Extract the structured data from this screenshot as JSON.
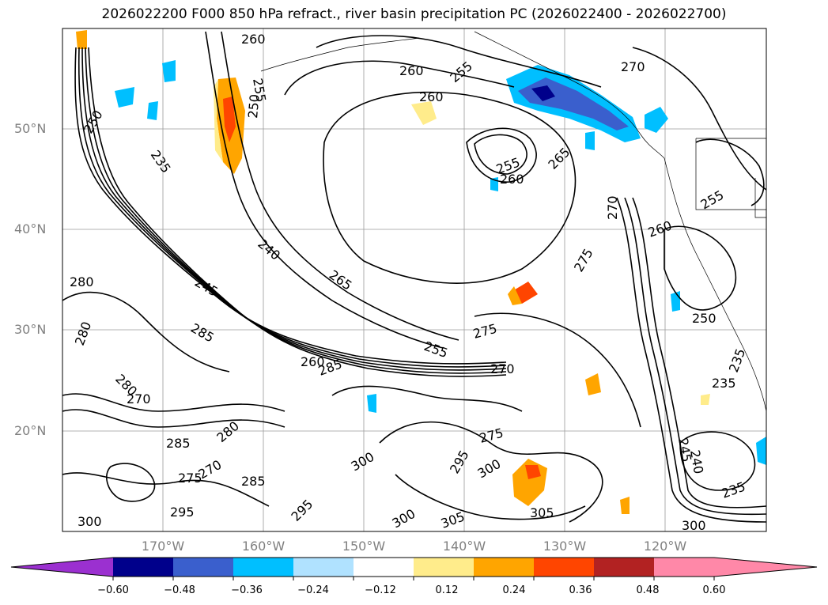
{
  "title": "2026022200 F000 850 hPa refract., river basin precipitation PC (2026022400 - 2026022700)",
  "latitude_labels": [
    "50°N",
    "40°N",
    "30°N",
    "20°N"
  ],
  "longitude_labels": [
    "170°W",
    "160°W",
    "150°W",
    "140°W",
    "130°W",
    "120°W"
  ],
  "colorbar": {
    "labels": [
      "−0.60",
      "−0.48",
      "−0.36",
      "−0.24",
      "−0.12",
      "0.12",
      "0.24",
      "0.36",
      "0.48",
      "0.60"
    ],
    "under_color": "#9b30d0",
    "colors": [
      "#00008b",
      "#3a5fcd",
      "#00bfff",
      "#b0e2ff",
      "#ffffff",
      "#ffec8b",
      "#ffa500",
      "#ff4500",
      "#b22222",
      "#ff88a8"
    ],
    "over_color": "#ff88a8"
  },
  "contour_labels": [
    {
      "text": "260"
    },
    {
      "text": "255"
    },
    {
      "text": "250"
    },
    {
      "text": "235"
    },
    {
      "text": "250"
    },
    {
      "text": "260"
    },
    {
      "text": "255"
    },
    {
      "text": "260"
    },
    {
      "text": "270"
    },
    {
      "text": "255"
    },
    {
      "text": "260"
    },
    {
      "text": "265"
    },
    {
      "text": "240"
    },
    {
      "text": "265"
    },
    {
      "text": "245"
    },
    {
      "text": "285"
    },
    {
      "text": "280"
    },
    {
      "text": "275"
    },
    {
      "text": "275"
    },
    {
      "text": "270"
    },
    {
      "text": "255"
    },
    {
      "text": "260"
    },
    {
      "text": "285"
    },
    {
      "text": "280"
    },
    {
      "text": "280"
    },
    {
      "text": "270"
    },
    {
      "text": "285"
    },
    {
      "text": "280"
    },
    {
      "text": "275"
    },
    {
      "text": "270"
    },
    {
      "text": "285"
    },
    {
      "text": "295"
    },
    {
      "text": "300"
    },
    {
      "text": "295"
    },
    {
      "text": "300"
    },
    {
      "text": "305"
    },
    {
      "text": "295"
    },
    {
      "text": "300"
    },
    {
      "text": "245"
    },
    {
      "text": "240"
    },
    {
      "text": "235"
    },
    {
      "text": "235"
    },
    {
      "text": "250"
    },
    {
      "text": "235"
    },
    {
      "text": "305"
    },
    {
      "text": "300"
    },
    {
      "text": "260"
    },
    {
      "text": "255"
    },
    {
      "text": "270"
    },
    {
      "text": "275"
    },
    {
      "text": "300"
    }
  ]
}
